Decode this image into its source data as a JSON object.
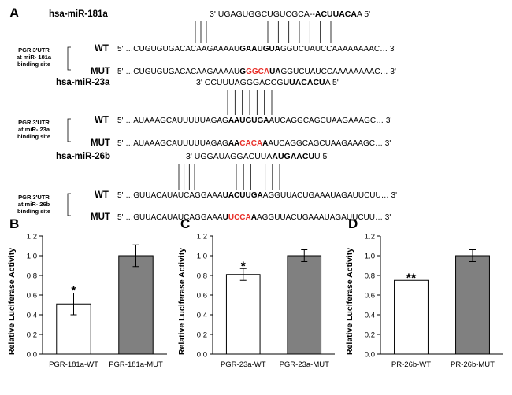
{
  "panel_a": {
    "label": "A",
    "blocks": [
      {
        "mirna_name": "hsa-miR-181a",
        "mirna_seq": [
          {
            "t": "3' UGAGUGGCUGUCGCA",
            "b": false
          },
          {
            "t": "--",
            "b": false
          },
          {
            "t": "ACUUACA",
            "b": true
          },
          {
            "t": "A 5'",
            "b": false
          }
        ],
        "pairs_left": 3,
        "pairs_right": 7,
        "site_label": [
          "PGR 3'UTR",
          "at miR- 181a",
          "binding site"
        ],
        "wt_label": "WT",
        "wt_seq": [
          {
            "t": "5' …CUGUGUGACACAAGAAAAU",
            "c": "n"
          },
          {
            "t": "GAAUGUA",
            "c": "b"
          },
          {
            "t": "GGUCUAUCCAAAAAAAAC… 3'",
            "c": "n"
          }
        ],
        "mut_label": "MUT",
        "mut_seq": [
          {
            "t": "5' …CUGUGUGACACAAGAAAAU",
            "c": "n"
          },
          {
            "t": "G",
            "c": "b"
          },
          {
            "t": "GGCA",
            "c": "r"
          },
          {
            "t": "UA",
            "c": "b"
          },
          {
            "t": "GGUCUAUCCAAAAAAAAC… 3'",
            "c": "n"
          }
        ]
      },
      {
        "mirna_name": "hsa-miR-23a",
        "mirna_seq": [
          {
            "t": "3' CCUUUAGGGACCG",
            "b": false
          },
          {
            "t": "UUACACU",
            "b": true
          },
          {
            "t": "A 5'",
            "b": false
          }
        ],
        "pairs_left": 0,
        "pairs_right": 7,
        "site_label": [
          "PGR 3'UTR",
          "at miR- 23a",
          "binding site"
        ],
        "wt_label": "WT",
        "wt_seq": [
          {
            "t": "5' …AUAAAGCAUUUUUAGAG",
            "c": "n"
          },
          {
            "t": "AAUGUGA",
            "c": "b"
          },
          {
            "t": "AUCAGGCAGCUAAGAAAGC… 3'",
            "c": "n"
          }
        ],
        "mut_label": "MUT",
        "mut_seq": [
          {
            "t": "5' …AUAAAGCAUUUUUAGAG",
            "c": "n"
          },
          {
            "t": "AA",
            "c": "b"
          },
          {
            "t": "CACA",
            "c": "r"
          },
          {
            "t": "A",
            "c": "b"
          },
          {
            "t": "AUCAGGCAGCUAAGAAAGC… 3'",
            "c": "n"
          }
        ]
      },
      {
        "mirna_name": "hsa-miR-26b",
        "mirna_seq": [
          {
            "t": "3' UGGAUAGGACUUA",
            "b": false
          },
          {
            "t": "AUGAACU",
            "b": true
          },
          {
            "t": "U 5'",
            "b": false
          }
        ],
        "pairs_left": 4,
        "pairs_right": 7,
        "site_label": [
          "PGR 3'UTR",
          "at miR- 26b",
          "binding site"
        ],
        "wt_label": "WT",
        "wt_seq": [
          {
            "t": "5' …GUUACAUAUCAGGAAA",
            "c": "n"
          },
          {
            "t": "UACUUGA",
            "c": "b"
          },
          {
            "t": "AGGUUACUGAAAUAGAUUCUU… 3'",
            "c": "n"
          }
        ],
        "mut_label": "MUT",
        "mut_seq": [
          {
            "t": "5' …GUUACAUAUCAGGAAA",
            "c": "n"
          },
          {
            "t": "U",
            "c": "b"
          },
          {
            "t": "UCCA",
            "c": "r"
          },
          {
            "t": "A",
            "c": "b"
          },
          {
            "t": "AGGUUACUGAAAUAGAUUCUU… 3'",
            "c": "n"
          }
        ]
      }
    ]
  },
  "chart_data": [
    {
      "panel_label": "B",
      "type": "bar",
      "categories": [
        "PGR-181a-WT",
        "PGR-181a-MUT"
      ],
      "values": [
        0.51,
        1.0
      ],
      "errors": [
        0.11,
        0.11
      ],
      "significance": [
        "*",
        ""
      ],
      "bar_colors": [
        "#ffffff",
        "#808080"
      ],
      "ylabel": "Relative Luciferase Activity",
      "ylim": [
        0,
        1.2
      ],
      "yticks": [
        "0.0",
        "0.2",
        "0.4",
        "0.6",
        "0.8",
        "1.0",
        "1.2"
      ]
    },
    {
      "panel_label": "C",
      "type": "bar",
      "categories": [
        "PGR-23a-WT",
        "PGR-23a-MUT"
      ],
      "values": [
        0.81,
        1.0
      ],
      "errors": [
        0.06,
        0.06
      ],
      "significance": [
        "*",
        ""
      ],
      "bar_colors": [
        "#ffffff",
        "#808080"
      ],
      "ylabel": "Relative Luciferase Activity",
      "ylim": [
        0,
        1.2
      ],
      "yticks": [
        "0.0",
        "0.2",
        "0.4",
        "0.6",
        "0.8",
        "1.0",
        "1.2"
      ]
    },
    {
      "panel_label": "D",
      "type": "bar",
      "categories": [
        "PR-26b-WT",
        "PR-26b-MUT"
      ],
      "values": [
        0.75,
        1.0
      ],
      "errors": [
        0.0,
        0.06
      ],
      "significance": [
        "**",
        ""
      ],
      "bar_colors": [
        "#ffffff",
        "#808080"
      ],
      "ylabel": "Relative Luciferase Activity",
      "ylim": [
        0,
        1.2
      ],
      "yticks": [
        "0.0",
        "0.2",
        "0.4",
        "0.6",
        "0.8",
        "1.0",
        "1.2"
      ]
    }
  ],
  "colors": {
    "mutation": "#e8302a",
    "bar_gray": "#808080",
    "axis": "#000000"
  }
}
